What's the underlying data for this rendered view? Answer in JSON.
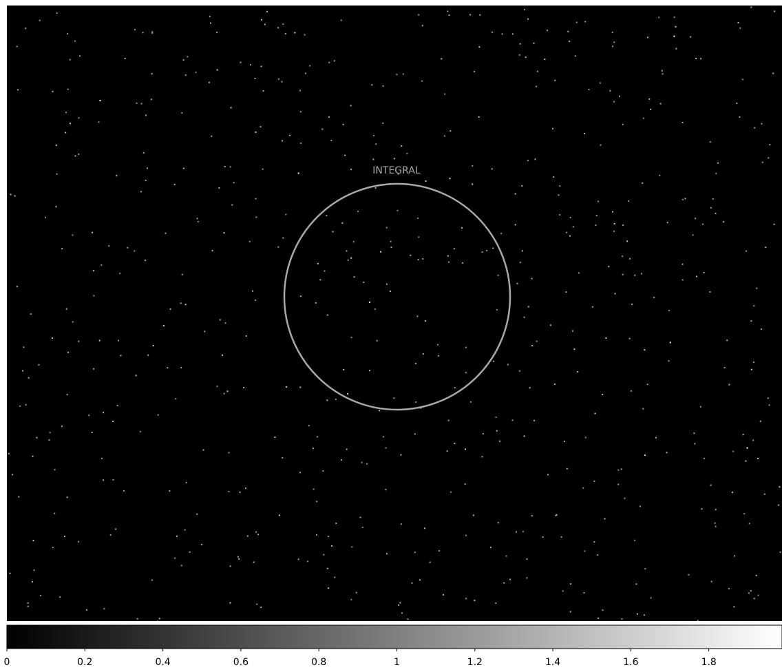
{
  "image": {
    "region_label": "INTEGRAL"
  },
  "colorbar": {
    "range": [
      0,
      2
    ],
    "ticks": [
      0,
      0.2,
      0.4,
      0.6,
      0.8,
      1,
      1.2,
      1.4,
      1.6,
      1.8
    ]
  }
}
